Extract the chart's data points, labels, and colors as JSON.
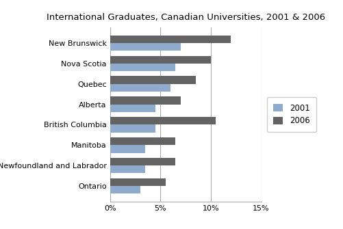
{
  "title": "International Graduates, Canadian Universities, 2001 & 2006",
  "categories": [
    "New Brunswick",
    "Nova Scotia",
    "Quebec",
    "Alberta",
    "British Columbia",
    "Manitoba",
    "Newfoundland and Labrador",
    "Ontario"
  ],
  "values_2001": [
    7.0,
    6.5,
    6.0,
    4.5,
    4.5,
    3.5,
    3.5,
    3.0
  ],
  "values_2006": [
    12.0,
    10.0,
    8.5,
    7.0,
    10.5,
    6.5,
    6.5,
    5.5
  ],
  "color_2001": "#8eaacd",
  "color_2006": "#636363",
  "xlim": [
    0,
    15
  ],
  "xticks": [
    0,
    5,
    10,
    15
  ],
  "xticklabels": [
    "0%",
    "5%",
    "10%",
    "15%"
  ],
  "legend_labels": [
    "2001",
    "2006"
  ],
  "background_color": "#ffffff",
  "bar_height": 0.38,
  "grid_color": "#aaaaaa"
}
